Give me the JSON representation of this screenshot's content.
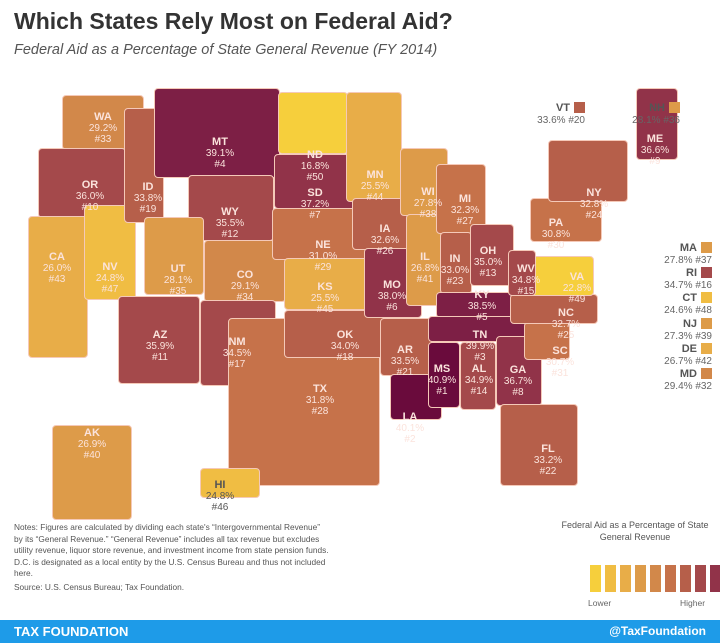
{
  "title": "Which States Rely Most on Federal Aid?",
  "subtitle": "Federal Aid as a Percentage of State General Revenue (FY 2014)",
  "colors": {
    "low": "#f6cf3c",
    "high": "#6a0b3c",
    "scale": [
      "#f6cf3c",
      "#f0bd43",
      "#e8ad48",
      "#dd9b49",
      "#d2884a",
      "#c6724a",
      "#b65f4a",
      "#a4494b",
      "#913349",
      "#7d1f45",
      "#6a0b3c"
    ],
    "border": "#f5c9b8",
    "footer": "#1e9be8"
  },
  "states": [
    {
      "abbr": "WA",
      "value": "29.2%",
      "rank": "#33"
    },
    {
      "abbr": "OR",
      "value": "36.0%",
      "rank": "#10"
    },
    {
      "abbr": "CA",
      "value": "26.0%",
      "rank": "#43"
    },
    {
      "abbr": "NV",
      "value": "24.8%",
      "rank": "#47"
    },
    {
      "abbr": "ID",
      "value": "33.8%",
      "rank": "#19"
    },
    {
      "abbr": "MT",
      "value": "39.1%",
      "rank": "#4"
    },
    {
      "abbr": "WY",
      "value": "35.5%",
      "rank": "#12"
    },
    {
      "abbr": "UT",
      "value": "28.1%",
      "rank": "#35"
    },
    {
      "abbr": "CO",
      "value": "29.1%",
      "rank": "#34"
    },
    {
      "abbr": "AZ",
      "value": "35.9%",
      "rank": "#11"
    },
    {
      "abbr": "NM",
      "value": "34.5%",
      "rank": "#17"
    },
    {
      "abbr": "ND",
      "value": "16.8%",
      "rank": "#50"
    },
    {
      "abbr": "SD",
      "value": "37.2%",
      "rank": "#7"
    },
    {
      "abbr": "NE",
      "value": "31.0%",
      "rank": "#29"
    },
    {
      "abbr": "KS",
      "value": "25.5%",
      "rank": "#45"
    },
    {
      "abbr": "TX",
      "value": "31.8%",
      "rank": "#28"
    },
    {
      "abbr": "OK",
      "value": "34.0%",
      "rank": "#18"
    },
    {
      "abbr": "MN",
      "value": "25.5%",
      "rank": "#44"
    },
    {
      "abbr": "IA",
      "value": "32.6%",
      "rank": "#26"
    },
    {
      "abbr": "MO",
      "value": "38.0%",
      "rank": "#6"
    },
    {
      "abbr": "AR",
      "value": "33.5%",
      "rank": "#21"
    },
    {
      "abbr": "LA",
      "value": "40.1%",
      "rank": "#2"
    },
    {
      "abbr": "WI",
      "value": "27.8%",
      "rank": "#38"
    },
    {
      "abbr": "IL",
      "value": "26.8%",
      "rank": "#41"
    },
    {
      "abbr": "MI",
      "value": "32.3%",
      "rank": "#27"
    },
    {
      "abbr": "IN",
      "value": "33.0%",
      "rank": "#23"
    },
    {
      "abbr": "OH",
      "value": "35.0%",
      "rank": "#13"
    },
    {
      "abbr": "KY",
      "value": "38.5%",
      "rank": "#5"
    },
    {
      "abbr": "TN",
      "value": "39.9%",
      "rank": "#3"
    },
    {
      "abbr": "MS",
      "value": "40.9%",
      "rank": "#1"
    },
    {
      "abbr": "AL",
      "value": "34.9%",
      "rank": "#14"
    },
    {
      "abbr": "GA",
      "value": "36.7%",
      "rank": "#8"
    },
    {
      "abbr": "FL",
      "value": "33.2%",
      "rank": "#22"
    },
    {
      "abbr": "SC",
      "value": "30.7%",
      "rank": "#31"
    },
    {
      "abbr": "NC",
      "value": "32.7%",
      "rank": "#25"
    },
    {
      "abbr": "VA",
      "value": "22.8%",
      "rank": "#49"
    },
    {
      "abbr": "WV",
      "value": "34.8%",
      "rank": "#15"
    },
    {
      "abbr": "PA",
      "value": "30.8%",
      "rank": "#30"
    },
    {
      "abbr": "NY",
      "value": "32.8%",
      "rank": "#24"
    },
    {
      "abbr": "ME",
      "value": "36.6%",
      "rank": "#9"
    },
    {
      "abbr": "AK",
      "value": "26.9%",
      "rank": "#40"
    },
    {
      "abbr": "HI",
      "value": "24.8%",
      "rank": "#46"
    }
  ],
  "small_states": [
    {
      "abbr": "VT",
      "value": "33.6%",
      "rank": "#20"
    },
    {
      "abbr": "NH",
      "value": "28.1%",
      "rank": "#36"
    },
    {
      "abbr": "MA",
      "value": "27.8%",
      "rank": "#37"
    },
    {
      "abbr": "RI",
      "value": "34.7%",
      "rank": "#16"
    },
    {
      "abbr": "CT",
      "value": "24.6%",
      "rank": "#48"
    },
    {
      "abbr": "NJ",
      "value": "27.3%",
      "rank": "#39"
    },
    {
      "abbr": "DE",
      "value": "26.7%",
      "rank": "#42"
    },
    {
      "abbr": "MD",
      "value": "29.4%",
      "rank": "#32"
    }
  ],
  "notes": "Notes: Figures are calculated by dividing each state's “Intergovernmental Revenue” by its “General Revenue.” “General Revenue” includes all tax revenue but excludes utility revenue, liquor store revenue, and investment income from state pension funds. D.C. is designated as a local entity by the U.S. Census Bureau and thus not included here.",
  "source": "Source: U.S. Census Bureau; Tax Foundation.",
  "legend": {
    "title": "Federal Aid as a Percentage of State General Revenue",
    "low": "Lower",
    "high": "Higher"
  },
  "footer": {
    "left": "TAX FOUNDATION",
    "right": "@TaxFoundation"
  }
}
